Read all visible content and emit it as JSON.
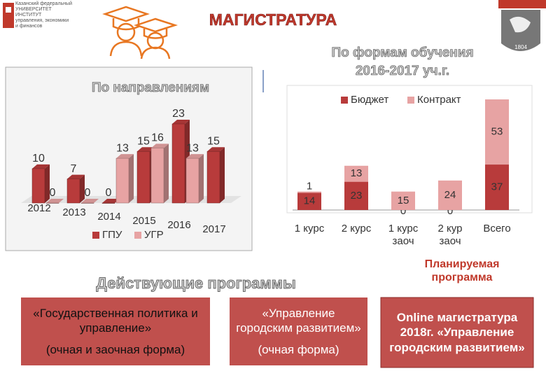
{
  "header": {
    "logo_text": [
      "Казанский федеральный",
      "УНИВЕРСИТЕТ",
      "ИНСТИТУТ",
      "управления, экономики",
      "и финансов"
    ],
    "title": "МАГИСТРАТУРА",
    "emblem_year": "1804"
  },
  "chart_data": [
    {
      "type": "bar",
      "3d": true,
      "title": "По направлениям",
      "categories": [
        "2012",
        "2013",
        "2014",
        "2015",
        "2016",
        "2017"
      ],
      "series": [
        {
          "name": "ГПУ",
          "color": "#b83b3b",
          "values": [
            10,
            7,
            0,
            15,
            23,
            15
          ]
        },
        {
          "name": "УГР",
          "color": "#e7a3a3",
          "values": [
            0,
            0,
            13,
            16,
            13,
            null
          ]
        }
      ]
    },
    {
      "type": "bar",
      "stacked": true,
      "title": [
        "По формам обучения",
        "2016-2017 уч.г."
      ],
      "categories": [
        "1 курс",
        "2 курс",
        "1 курс заоч",
        "2 кур заоч",
        "Всего"
      ],
      "series": [
        {
          "name": "Бюджет",
          "color": "#b83b3b",
          "values": [
            14,
            23,
            0,
            0,
            37
          ]
        },
        {
          "name": "Контракт",
          "color": "#e7a3a3",
          "values": [
            1,
            13,
            15,
            24,
            53
          ]
        }
      ]
    }
  ],
  "programs": {
    "title": "Действующие программы",
    "items": [
      {
        "name": "«Государственная политика и управление»",
        "form": "(очная и заочная форма)"
      },
      {
        "name": "«Управление городским развитием»",
        "form": "(очная форма)"
      }
    ]
  },
  "planned": {
    "title": "Планируемая программа",
    "text": "Online магистратура 2018г. «Управление городским развитием»"
  }
}
